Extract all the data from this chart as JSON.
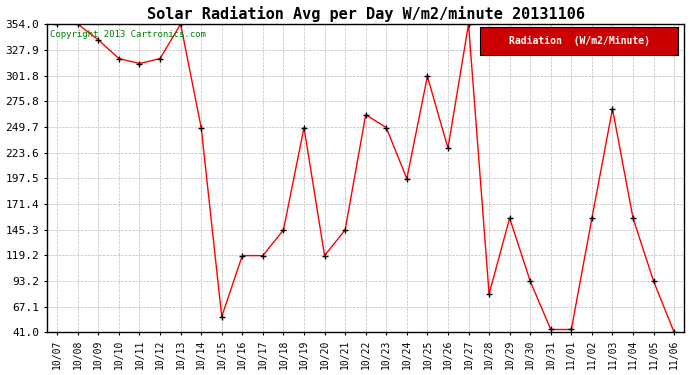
{
  "title": "Solar Radiation Avg per Day W/m2/minute 20131106",
  "copyright_text": "Copyright 2013 Cartronics.com",
  "legend_label": "Radiation  (W/m2/Minute)",
  "dates": [
    "10/07",
    "10/08",
    "10/09",
    "10/10",
    "10/11",
    "10/12",
    "10/13",
    "10/14",
    "10/15",
    "10/16",
    "10/17",
    "10/18",
    "10/19",
    "10/20",
    "10/21",
    "10/22",
    "10/23",
    "10/24",
    "10/25",
    "10/26",
    "10/27",
    "10/28",
    "10/29",
    "10/30",
    "10/31",
    "11/01",
    "11/02",
    "11/03",
    "11/04",
    "11/05",
    "11/06"
  ],
  "values": [
    354.0,
    354.0,
    338.0,
    319.0,
    314.0,
    319.0,
    354.0,
    249.0,
    57.0,
    119.0,
    119.0,
    145.0,
    249.0,
    119.0,
    145.0,
    262.0,
    249.0,
    197.0,
    301.0,
    228.0,
    354.0,
    80.0,
    157.0,
    93.0,
    44.0,
    44.0,
    157.0,
    268.0,
    157.0,
    93.0,
    41.0
  ],
  "line_color": "red",
  "marker_color": "black",
  "bg_color": "#ffffff",
  "grid_color": "#aaaaaa",
  "yticks": [
    41.0,
    67.1,
    93.2,
    119.2,
    145.3,
    171.4,
    197.5,
    223.6,
    249.7,
    275.8,
    301.8,
    327.9,
    354.0
  ],
  "ylim": [
    41.0,
    354.0
  ],
  "title_fontsize": 11,
  "legend_bg": "#cc0000",
  "legend_text_color": "#ffffff"
}
